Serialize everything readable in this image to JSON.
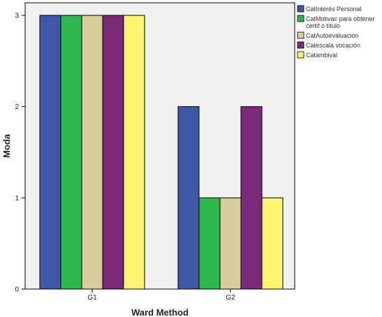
{
  "chart_data": {
    "type": "bar",
    "title": "",
    "xlabel": "Ward Method",
    "ylabel": "Moda",
    "categories": [
      "G1",
      "G2"
    ],
    "ylim": [
      0,
      3
    ],
    "yticks": [
      0,
      1,
      2,
      3
    ],
    "grid": false,
    "legend_position": "right",
    "background_color": "#f0f0f0",
    "series": [
      {
        "name": "CatInterés Personal",
        "color": "#3f57a7",
        "values": [
          3,
          2
        ]
      },
      {
        "name": "CatMotivac para obtener certif o título",
        "color": "#2db84a",
        "values": [
          3,
          1
        ]
      },
      {
        "name": "CatAutoevaluación",
        "color": "#d6cc9c",
        "values": [
          3,
          1
        ]
      },
      {
        "name": "Catescala vocación",
        "color": "#7b2a7a",
        "values": [
          3,
          2
        ]
      },
      {
        "name": "Catambival",
        "color": "#fdf46f",
        "values": [
          3,
          1
        ]
      }
    ]
  }
}
